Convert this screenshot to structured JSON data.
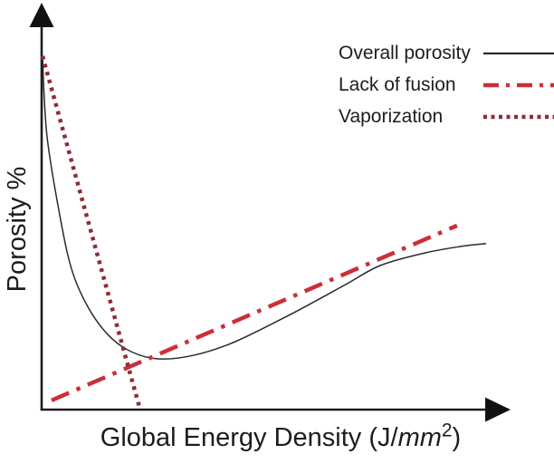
{
  "figure": {
    "ylabel": "Porosity %",
    "xlabel": {
      "prefix": "Global Energy Density (J/",
      "italic": "mm",
      "superscript": "2",
      "suffix": ")"
    }
  },
  "legend": {
    "position": "top-right",
    "items": [
      {
        "label": "Overall porosity",
        "style": "solid",
        "color": "#2a2a2a"
      },
      {
        "label": "Lack of fusion",
        "style": "dash-dot",
        "color": "#cb2f3a"
      },
      {
        "label": "Vaporization",
        "style": "dotted",
        "color": "#8f2b3a"
      }
    ]
  },
  "chart_data": {
    "type": "line",
    "title": "",
    "xlabel": "Global Energy Density (J/mm^2)",
    "ylabel": "Porosity %",
    "x_axis": {
      "ticks": "none",
      "range_rel": [
        0,
        1
      ],
      "arrow": true
    },
    "y_axis": {
      "ticks": "none",
      "range_rel": [
        0,
        1
      ],
      "arrow": true
    },
    "grid": false,
    "legend_position": "top-right",
    "series": [
      {
        "name": "Overall porosity",
        "color": "#2a2a2a",
        "line_style": "solid",
        "smooth": true,
        "points": [
          [
            0.002,
            0.915
          ],
          [
            0.012,
            0.712
          ],
          [
            0.043,
            0.491
          ],
          [
            0.069,
            0.358
          ],
          [
            0.105,
            0.264
          ],
          [
            0.15,
            0.193
          ],
          [
            0.2,
            0.151
          ],
          [
            0.261,
            0.132
          ],
          [
            0.342,
            0.142
          ],
          [
            0.433,
            0.177
          ],
          [
            0.555,
            0.247
          ],
          [
            0.676,
            0.323
          ],
          [
            0.757,
            0.375
          ],
          [
            0.858,
            0.408
          ],
          [
            0.939,
            0.425
          ],
          [
            0.994,
            0.432
          ]
        ]
      },
      {
        "name": "Lack of fusion",
        "color": "#cb2f3a",
        "line_style": "dash-dot",
        "smooth": false,
        "points": [
          [
            0.022,
            0.024
          ],
          [
            0.929,
            0.479
          ]
        ]
      },
      {
        "name": "Vaporization",
        "color": "#8f2b3a",
        "line_style": "dotted",
        "smooth": false,
        "points": [
          [
            0.002,
            0.92
          ],
          [
            0.219,
            0.005
          ]
        ]
      }
    ]
  }
}
